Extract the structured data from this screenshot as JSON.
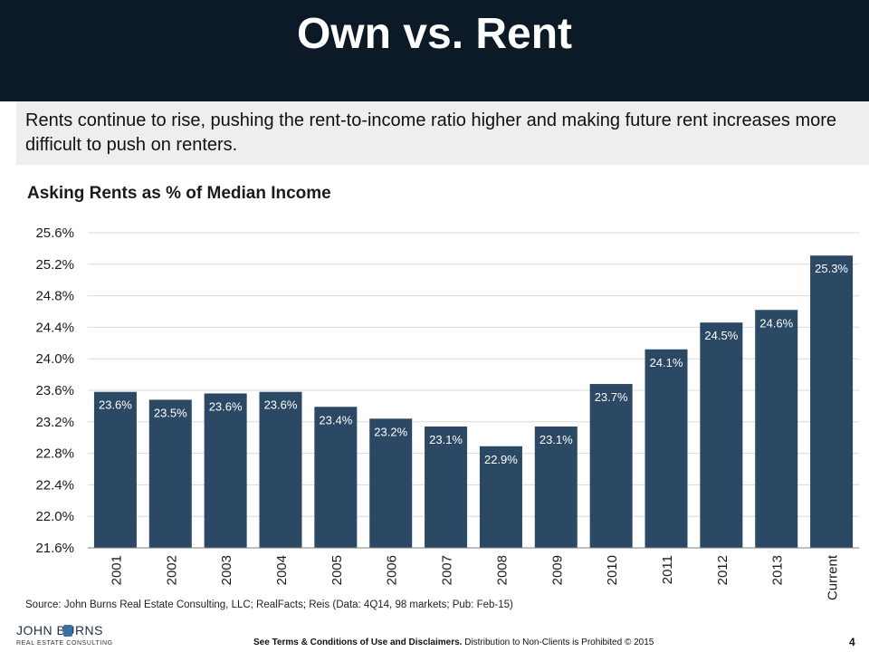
{
  "slide": {
    "title": "Own vs. Rent",
    "subtitle": "Rents continue to rise, pushing the rent-to-income ratio higher and making future rent increases more difficult to push on renters.",
    "source": "Source: John Burns Real Estate Consulting, LLC; RealFacts; Reis (Data: 4Q14, 98 markets; Pub: Feb-15)",
    "logo_line1": "JOHN BURNS",
    "logo_line2": "REAL ESTATE CONSULTING",
    "footer_bold": "See Terms & Conditions of Use and Disclaimers.",
    "footer_rest": " Distribution to Non-Clients is Prohibited © 2015",
    "page_number": "4"
  },
  "colors": {
    "header_bg": "#0b1a26",
    "bar": "#2b4864",
    "grid": "#d9d9d9"
  },
  "chart_data": {
    "type": "bar",
    "title": "Asking Rents  as % of Median Income",
    "categories": [
      "2001",
      "2002",
      "2003",
      "2004",
      "2005",
      "2006",
      "2007",
      "2008",
      "2009",
      "2010",
      "2011",
      "2012",
      "2013",
      "Current"
    ],
    "values": [
      23.58,
      23.48,
      23.56,
      23.58,
      23.39,
      23.24,
      23.14,
      22.89,
      23.14,
      23.68,
      24.12,
      24.46,
      24.62,
      25.31
    ],
    "data_labels": [
      "23.6%",
      "23.5%",
      "23.6%",
      "23.6%",
      "23.4%",
      "23.2%",
      "23.1%",
      "22.9%",
      "23.1%",
      "23.7%",
      "24.1%",
      "24.5%",
      "24.6%",
      "25.3%"
    ],
    "y_ticks": [
      "21.6%",
      "22.0%",
      "22.4%",
      "22.8%",
      "23.2%",
      "23.6%",
      "24.0%",
      "24.4%",
      "24.8%",
      "25.2%",
      "25.6%"
    ],
    "ylim": [
      21.6,
      25.6
    ],
    "grid": true,
    "legend": "none"
  }
}
